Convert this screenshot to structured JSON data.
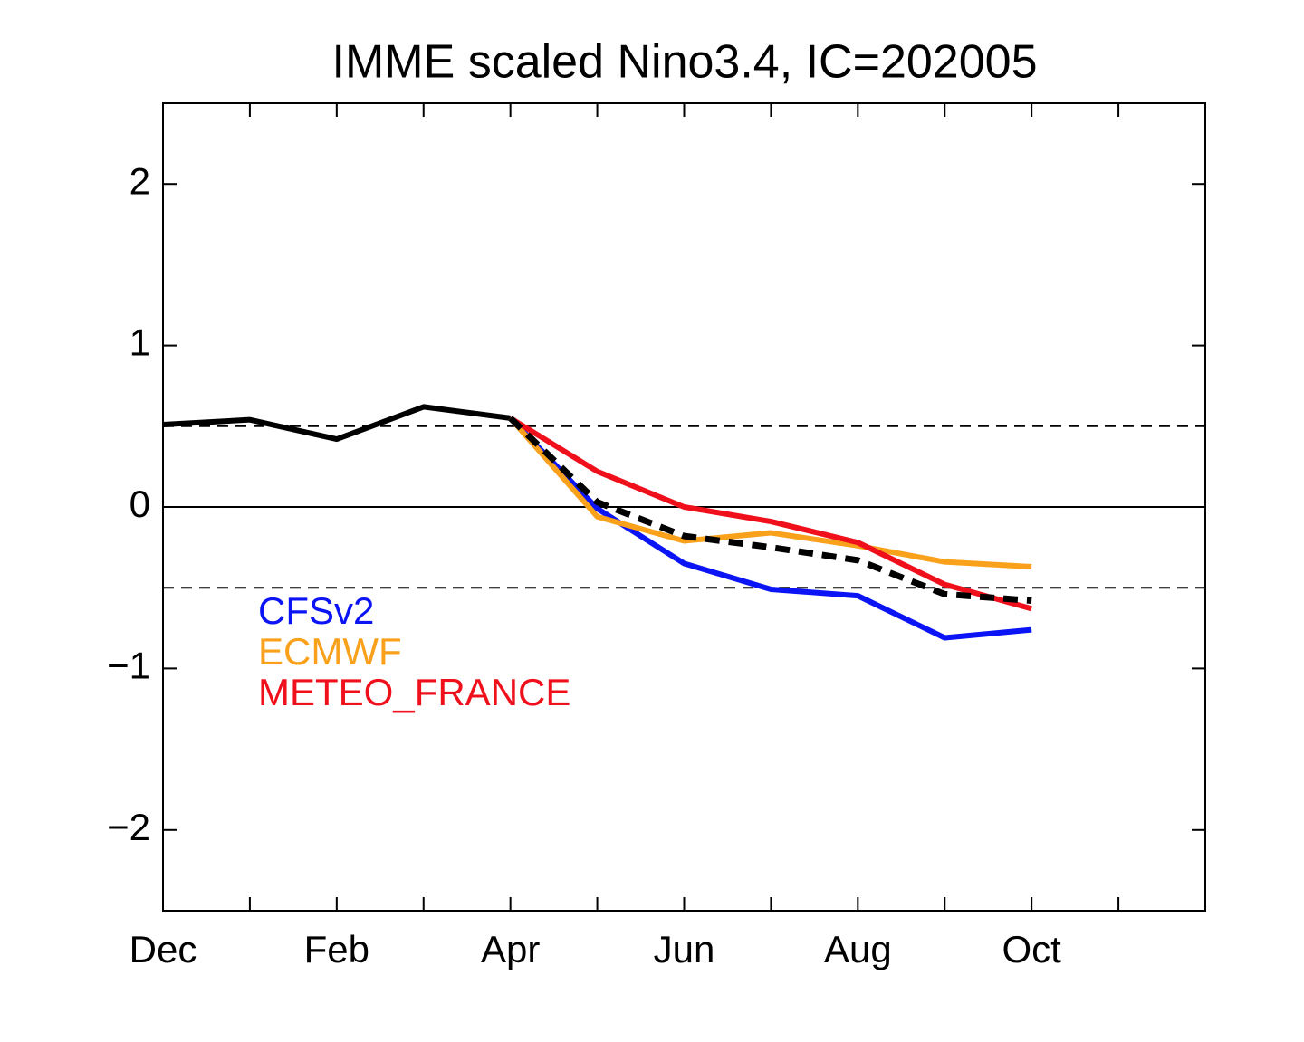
{
  "chart_data": {
    "type": "line",
    "title": "IMME scaled Nino3.4, IC=202005",
    "categories": [
      "Dec",
      null,
      "Feb",
      null,
      "Apr",
      null,
      "Jun",
      null,
      "Aug",
      null,
      "Oct",
      null
    ],
    "ylim": [
      -2.5,
      2.5
    ],
    "yticks": [
      {
        "value": -2,
        "label": "−2"
      },
      {
        "value": -1,
        "label": "−1"
      },
      0,
      1,
      2
    ],
    "hlines": [
      {
        "value": 0.5,
        "style": "dashed"
      },
      {
        "value": 0,
        "style": "solid"
      },
      {
        "value": -0.5,
        "style": "dashed"
      }
    ],
    "legend": "left",
    "series": [
      {
        "color": "#000000",
        "style": "solid",
        "values": [
          0.51,
          0.54,
          0.42,
          0.62,
          0.55,
          null,
          null,
          null,
          null,
          null,
          null,
          null
        ]
      },
      {
        "name": "CFSv2",
        "color": "#0a14f5",
        "style": "solid",
        "values": [
          null,
          null,
          null,
          null,
          0.55,
          -0.01,
          -0.35,
          -0.51,
          -0.55,
          -0.81,
          -0.76,
          null
        ]
      },
      {
        "name": "ECMWF",
        "color": "#f9a11b",
        "style": "solid",
        "values": [
          null,
          null,
          null,
          null,
          0.55,
          -0.06,
          -0.21,
          -0.16,
          -0.24,
          -0.34,
          -0.37,
          null
        ]
      },
      {
        "name": "METEO_FRANCE",
        "color": "#f0101c",
        "style": "solid",
        "values": [
          null,
          null,
          null,
          null,
          0.55,
          0.22,
          0.0,
          -0.09,
          -0.22,
          -0.48,
          -0.63,
          null
        ]
      },
      {
        "color": "#000000",
        "style": "dashed",
        "values": [
          null,
          null,
          null,
          null,
          0.55,
          0.03,
          -0.18,
          -0.25,
          -0.33,
          -0.54,
          -0.58,
          null
        ]
      }
    ]
  }
}
